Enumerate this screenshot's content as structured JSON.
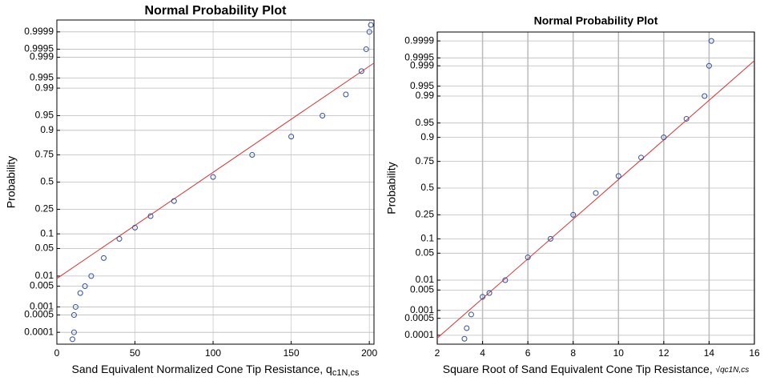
{
  "chart_data": [
    {
      "type": "scatter",
      "title": "Normal Probability Plot",
      "xlabel": "Sand Equivalent Normalized Cone Tip Resistance, q",
      "xlabel_subscript": "c1N,cs",
      "ylabel": "Probability",
      "yscale": "normal-probability",
      "xlim": [
        0,
        203
      ],
      "xticks": [
        0,
        50,
        100,
        150,
        200
      ],
      "ylim": [
        3e-05,
        0.99997
      ],
      "yticks": [
        0.0001,
        0.0005,
        0.001,
        0.005,
        0.01,
        0.05,
        0.1,
        0.25,
        0.5,
        0.75,
        0.9,
        0.95,
        0.99,
        0.995,
        0.999,
        0.9995,
        0.9999
      ],
      "grid": true,
      "color": "#2e4fa3",
      "x": [
        10,
        11,
        11,
        12,
        15,
        18,
        22,
        30,
        40,
        50,
        60,
        75,
        100,
        125,
        150,
        170,
        185,
        195,
        198,
        200,
        201
      ],
      "values": [
        5e-05,
        0.0001,
        0.0005,
        0.001,
        0.003,
        0.005,
        0.01,
        0.03,
        0.08,
        0.13,
        0.2,
        0.32,
        0.55,
        0.75,
        0.87,
        0.95,
        0.985,
        0.997,
        0.9995,
        0.9999,
        0.99995
      ],
      "reference_line": {
        "color": "#e03030",
        "x": [
          0,
          203
        ],
        "values": [
          0.0085,
          0.9984
        ]
      }
    },
    {
      "type": "scatter",
      "title": "Normal Probability Plot",
      "xlabel": "Square Root of Sand Equivalent Cone Tip Resistance, ",
      "xlabel_math": "√qc1N,cs",
      "ylabel": "Probability",
      "yscale": "normal-probability",
      "xlim": [
        2,
        16
      ],
      "xticks": [
        2,
        4,
        6,
        8,
        10,
        12,
        14,
        16
      ],
      "ylim": [
        4e-05,
        0.99996
      ],
      "yticks": [
        0.0001,
        0.0005,
        0.001,
        0.005,
        0.01,
        0.05,
        0.1,
        0.25,
        0.5,
        0.75,
        0.9,
        0.95,
        0.99,
        0.995,
        0.999,
        0.9995,
        0.9999
      ],
      "grid": true,
      "color": "#2e4fa3",
      "x": [
        3.2,
        3.3,
        3.5,
        4,
        4.3,
        5,
        6,
        7,
        8,
        9,
        10,
        11,
        12,
        13,
        13.8,
        14,
        14.1
      ],
      "values": [
        7e-05,
        0.0002,
        0.0007,
        0.003,
        0.004,
        0.01,
        0.04,
        0.1,
        0.25,
        0.45,
        0.62,
        0.78,
        0.9,
        0.96,
        0.99,
        0.999,
        0.9999
      ],
      "reference_line": {
        "color": "#e03030",
        "x": [
          2,
          16
        ],
        "values": [
          7.5e-05,
          0.99936
        ]
      }
    }
  ]
}
